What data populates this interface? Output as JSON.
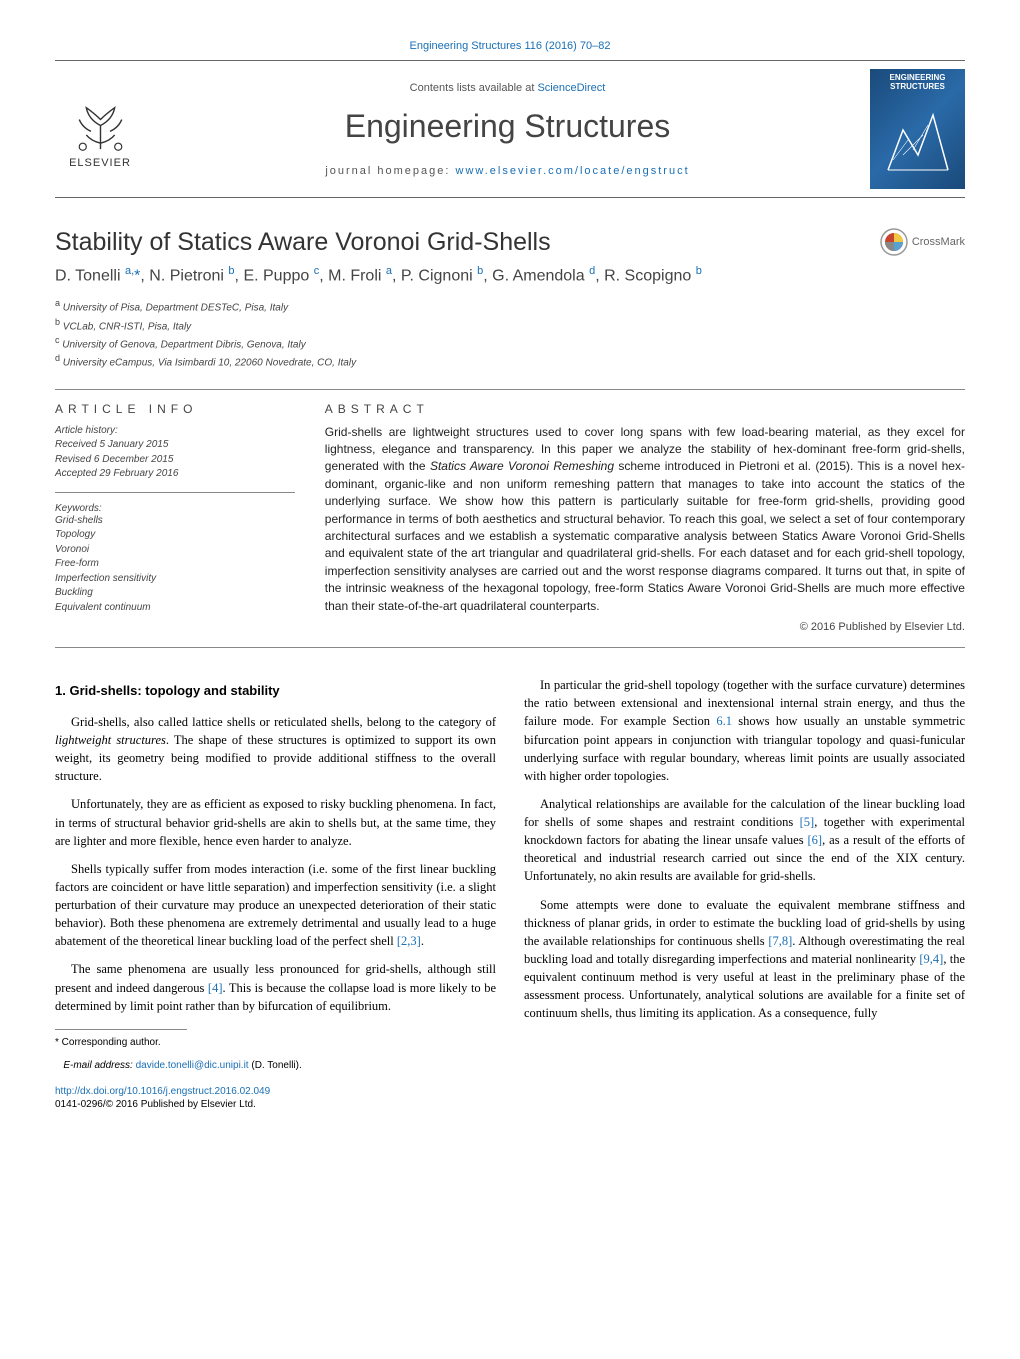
{
  "header": {
    "journal_ref": "Engineering Structures 116 (2016) 70–82",
    "contents_prefix": "Contents lists available at ",
    "contents_link": "ScienceDirect",
    "journal_name": "Engineering Structures",
    "homepage_prefix": "journal homepage: ",
    "homepage_link": "www.elsevier.com/locate/engstruct",
    "publisher": "ELSEVIER",
    "cover_title": "ENGINEERING STRUCTURES"
  },
  "title": "Stability of Statics Aware Voronoi Grid-Shells",
  "crossmark": "CrossMark",
  "authors_html": "D. Tonelli <sup>a,</sup><span class='asterisk'>*</span>, N. Pietroni <sup>b</sup>, E. Puppo <sup>c</sup>, M. Froli <sup>a</sup>, P. Cignoni <sup>b</sup>, G. Amendola <sup>d</sup>, R. Scopigno <sup>b</sup>",
  "affiliations": [
    {
      "sup": "a",
      "text": "University of Pisa, Department DESTeC, Pisa, Italy"
    },
    {
      "sup": "b",
      "text": "VCLab, CNR-ISTI, Pisa, Italy"
    },
    {
      "sup": "c",
      "text": "University of Genova, Department Dibris, Genova, Italy"
    },
    {
      "sup": "d",
      "text": "University eCampus, Via Isimbardi 10, 22060 Novedrate, CO, Italy"
    }
  ],
  "info": {
    "label": "ARTICLE INFO",
    "history_title": "Article history:",
    "received": "Received 5 January 2015",
    "revised": "Revised 6 December 2015",
    "accepted": "Accepted 29 February 2016",
    "keywords_title": "Keywords:",
    "keywords": [
      "Grid-shells",
      "Topology",
      "Voronoi",
      "Free-form",
      "Imperfection sensitivity",
      "Buckling",
      "Equivalent continuum"
    ]
  },
  "abstract": {
    "label": "ABSTRACT",
    "text": "Grid-shells are lightweight structures used to cover long spans with few load-bearing material, as they excel for lightness, elegance and transparency. In this paper we analyze the stability of hex-dominant free-form grid-shells, generated with the <em>Statics Aware Voronoi Remeshing</em> scheme introduced in Pietroni et al. (2015). This is a novel hex-dominant, organic-like and non uniform remeshing pattern that manages to take into account the statics of the underlying surface. We show how this pattern is particularly suitable for free-form grid-shells, providing good performance in terms of both aesthetics and structural behavior. To reach this goal, we select a set of four contemporary architectural surfaces and we establish a systematic comparative analysis between Statics Aware Voronoi Grid-Shells and equivalent state of the art triangular and quadrilateral grid-shells. For each dataset and for each grid-shell topology, imperfection sensitivity analyses are carried out and the worst response diagrams compared. It turns out that, in spite of the intrinsic weakness of the hexagonal topology, free-form Statics Aware Voronoi Grid-Shells are much more effective than their state-of-the-art quadrilateral counterparts.",
    "copyright": "© 2016 Published by Elsevier Ltd."
  },
  "body": {
    "h1": "1. Grid-shells: topology and stability",
    "p1": "Grid-shells, also called lattice shells or reticulated shells, belong to the category of <em>lightweight structures</em>. The shape of these structures is optimized to support its own weight, its geometry being modified to provide additional stiffness to the overall structure.",
    "p2": "Unfortunately, they are as efficient as exposed to risky buckling phenomena. In fact, in terms of structural behavior grid-shells are akin to shells but, at the same time, they are lighter and more flexible, hence even harder to analyze.",
    "p3": "Shells typically suffer from modes interaction (i.e. some of the first linear buckling factors are coincident or have little separation) and imperfection sensitivity (i.e. a slight perturbation of their curvature may produce an unexpected deterioration of their static behavior). Both these phenomena are extremely detrimental and usually lead to a huge abatement of the theoretical linear buckling load of the perfect shell <span class='cite'>[2,3]</span>.",
    "p4": "The same phenomena are usually less pronounced for grid-shells, although still present and indeed dangerous <span class='cite'>[4]</span>. This is because the collapse load is more likely to be determined by limit point rather than by bifurcation of equilibrium.",
    "p5": "In particular the grid-shell topology (together with the surface curvature) determines the ratio between extensional and inextensional internal strain energy, and thus the failure mode. For example Section <span class='cite'>6.1</span> shows how usually an unstable symmetric bifurcation point appears in conjunction with triangular topology and quasi-funicular underlying surface with regular boundary, whereas limit points are usually associated with higher order topologies.",
    "p6": "Analytical relationships are available for the calculation of the linear buckling load for shells of some shapes and restraint conditions <span class='cite'>[5]</span>, together with experimental knockdown factors for abating the linear unsafe values <span class='cite'>[6]</span>, as a result of the efforts of theoretical and industrial research carried out since the end of the XIX century. Unfortunately, no akin results are available for grid-shells.",
    "p7": "Some attempts were done to evaluate the equivalent membrane stiffness and thickness of planar grids, in order to estimate the buckling load of grid-shells by using the available relationships for continuous shells <span class='cite'>[7,8]</span>. Although overestimating the real buckling load and totally disregarding imperfections and material nonlinearity <span class='cite'>[9,4]</span>, the equivalent continuum method is very useful at least in the preliminary phase of the assessment process. Unfortunately, analytical solutions are available for a finite set of continuum shells, thus limiting its application. As a consequence, fully"
  },
  "footnote": {
    "corr": "* Corresponding author.",
    "email_label": "E-mail address: ",
    "email": "davide.tonelli@dic.unipi.it",
    "email_suffix": " (D. Tonelli)."
  },
  "doi": {
    "link": "http://dx.doi.org/10.1016/j.engstruct.2016.02.049",
    "issn": "0141-0296/© 2016 Published by Elsevier Ltd."
  },
  "colors": {
    "link": "#1a6fb5",
    "text": "#222222",
    "rule": "#888888"
  }
}
